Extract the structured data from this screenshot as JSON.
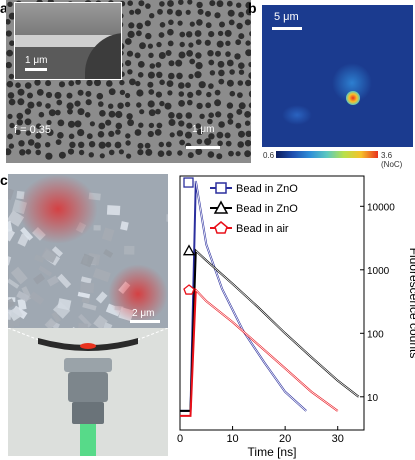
{
  "panels": {
    "a": {
      "label": "a",
      "inset_scalebar": "1 μm",
      "main_scalebar": "1 μm",
      "fill_fraction_text": "f = 0.35"
    },
    "b": {
      "label": "b",
      "scalebar": "5 μm",
      "colorbar_min": "0.6",
      "colorbar_max": "3.6 (NoC)"
    },
    "c": {
      "label": "c",
      "scalebar": "2 μm"
    }
  },
  "chart_data": {
    "type": "line",
    "xlabel": "Time [ns]",
    "ylabel": "Fluorescence counts",
    "xlim": [
      0,
      35
    ],
    "ylim": [
      3,
      30000
    ],
    "y_scale": "log",
    "x_ticks": [
      "0",
      "10",
      "20",
      "30"
    ],
    "y_ticks": [
      "10",
      "100",
      "1000",
      "10000"
    ],
    "legend_placement": "top-left",
    "series": [
      {
        "name": "Bead in ZnO",
        "marker": "square",
        "color": "#2b2f9e",
        "x": [
          0,
          2,
          3,
          5,
          8,
          12,
          16,
          20,
          24
        ],
        "y": [
          6,
          6,
          25000,
          2500,
          500,
          110,
          35,
          12,
          6
        ]
      },
      {
        "name": "Bead in ZnO",
        "marker": "triangle",
        "color": "#000000",
        "x": [
          0,
          2,
          3,
          5,
          10,
          15,
          20,
          25,
          30,
          34
        ],
        "y": [
          6,
          6,
          2000,
          1400,
          600,
          250,
          100,
          42,
          18,
          10
        ]
      },
      {
        "name": "Bead in air",
        "marker": "pentagon",
        "color": "#e8101a",
        "x": [
          0,
          2,
          3,
          5,
          10,
          15,
          20,
          25,
          30
        ],
        "y": [
          5,
          5,
          480,
          320,
          150,
          65,
          28,
          12,
          6
        ]
      }
    ]
  }
}
